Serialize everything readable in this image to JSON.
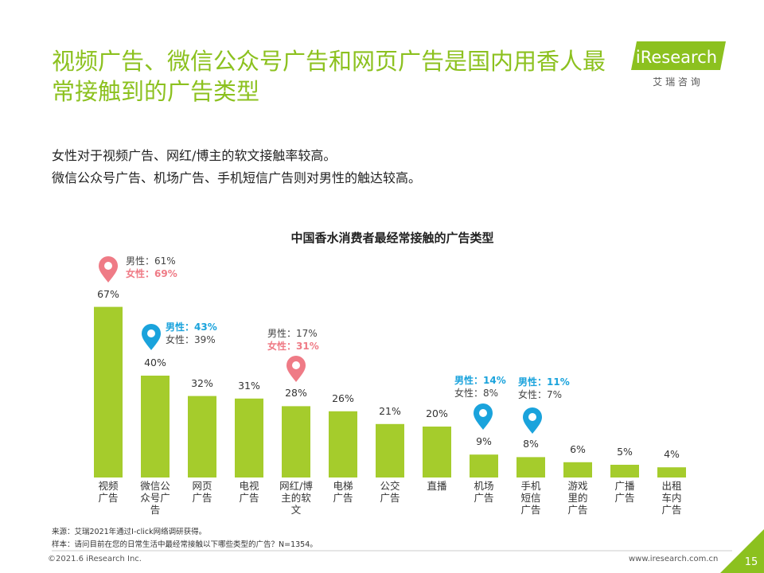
{
  "header": {
    "title": "视频广告、微信公众号广告和网页广告是国内用香人最常接触到的广告类型",
    "logo": "iResearch",
    "logo_sub": "艾 瑞 咨 询"
  },
  "summary": [
    "女性对于视频广告、网红/博主的软文接触率较高。",
    "微信公众号广告、机场广告、手机短信广告则对男性的触达较高。"
  ],
  "chart_data": {
    "type": "bar",
    "title": "中国香水消费者最经常接触的广告类型",
    "categories": [
      "视频\n广告",
      "微信公\n众号广\n告",
      "网页\n广告",
      "电视\n广告",
      "网红/博\n主的软\n文",
      "电梯\n广告",
      "公交\n广告",
      "直播",
      "机场\n广告",
      "手机\n短信\n广告",
      "游戏\n里的\n广告",
      "广播\n广告",
      "出租\n车内\n广告"
    ],
    "values": [
      67,
      40,
      32,
      31,
      28,
      26,
      21,
      20,
      9,
      8,
      6,
      5,
      4
    ],
    "value_labels": [
      "67%",
      "40%",
      "32%",
      "31%",
      "28%",
      "26%",
      "21%",
      "20%",
      "9%",
      "8%",
      "6%",
      "5%",
      "4%"
    ],
    "color": "#a5cc2c",
    "annotations": [
      {
        "male": "男性：61%",
        "female": "女性：69%",
        "color": "#ef7b86"
      },
      {
        "male": "男性：43%",
        "female": "女性：39%",
        "color": "#1aa3dc"
      },
      {
        "male": "男性：17%",
        "female": "女性：31%",
        "color": "#ef7b86"
      },
      {
        "male": "男性：14%",
        "female": "女性：8%",
        "color": "#1aa3dc"
      },
      {
        "male": "男性：11%",
        "female": "女性：7%",
        "color": "#1aa3dc"
      }
    ]
  },
  "notes": [
    "来源：艾瑞2021年通过I-click网络调研获得。",
    "样本：请问目前在您的日常生活中最经常接触以下哪些类型的广告？N=1354。"
  ],
  "footer": {
    "copyright": "©2021.6 iResearch Inc.",
    "url": "www.iresearch.com.cn",
    "page": "15"
  }
}
